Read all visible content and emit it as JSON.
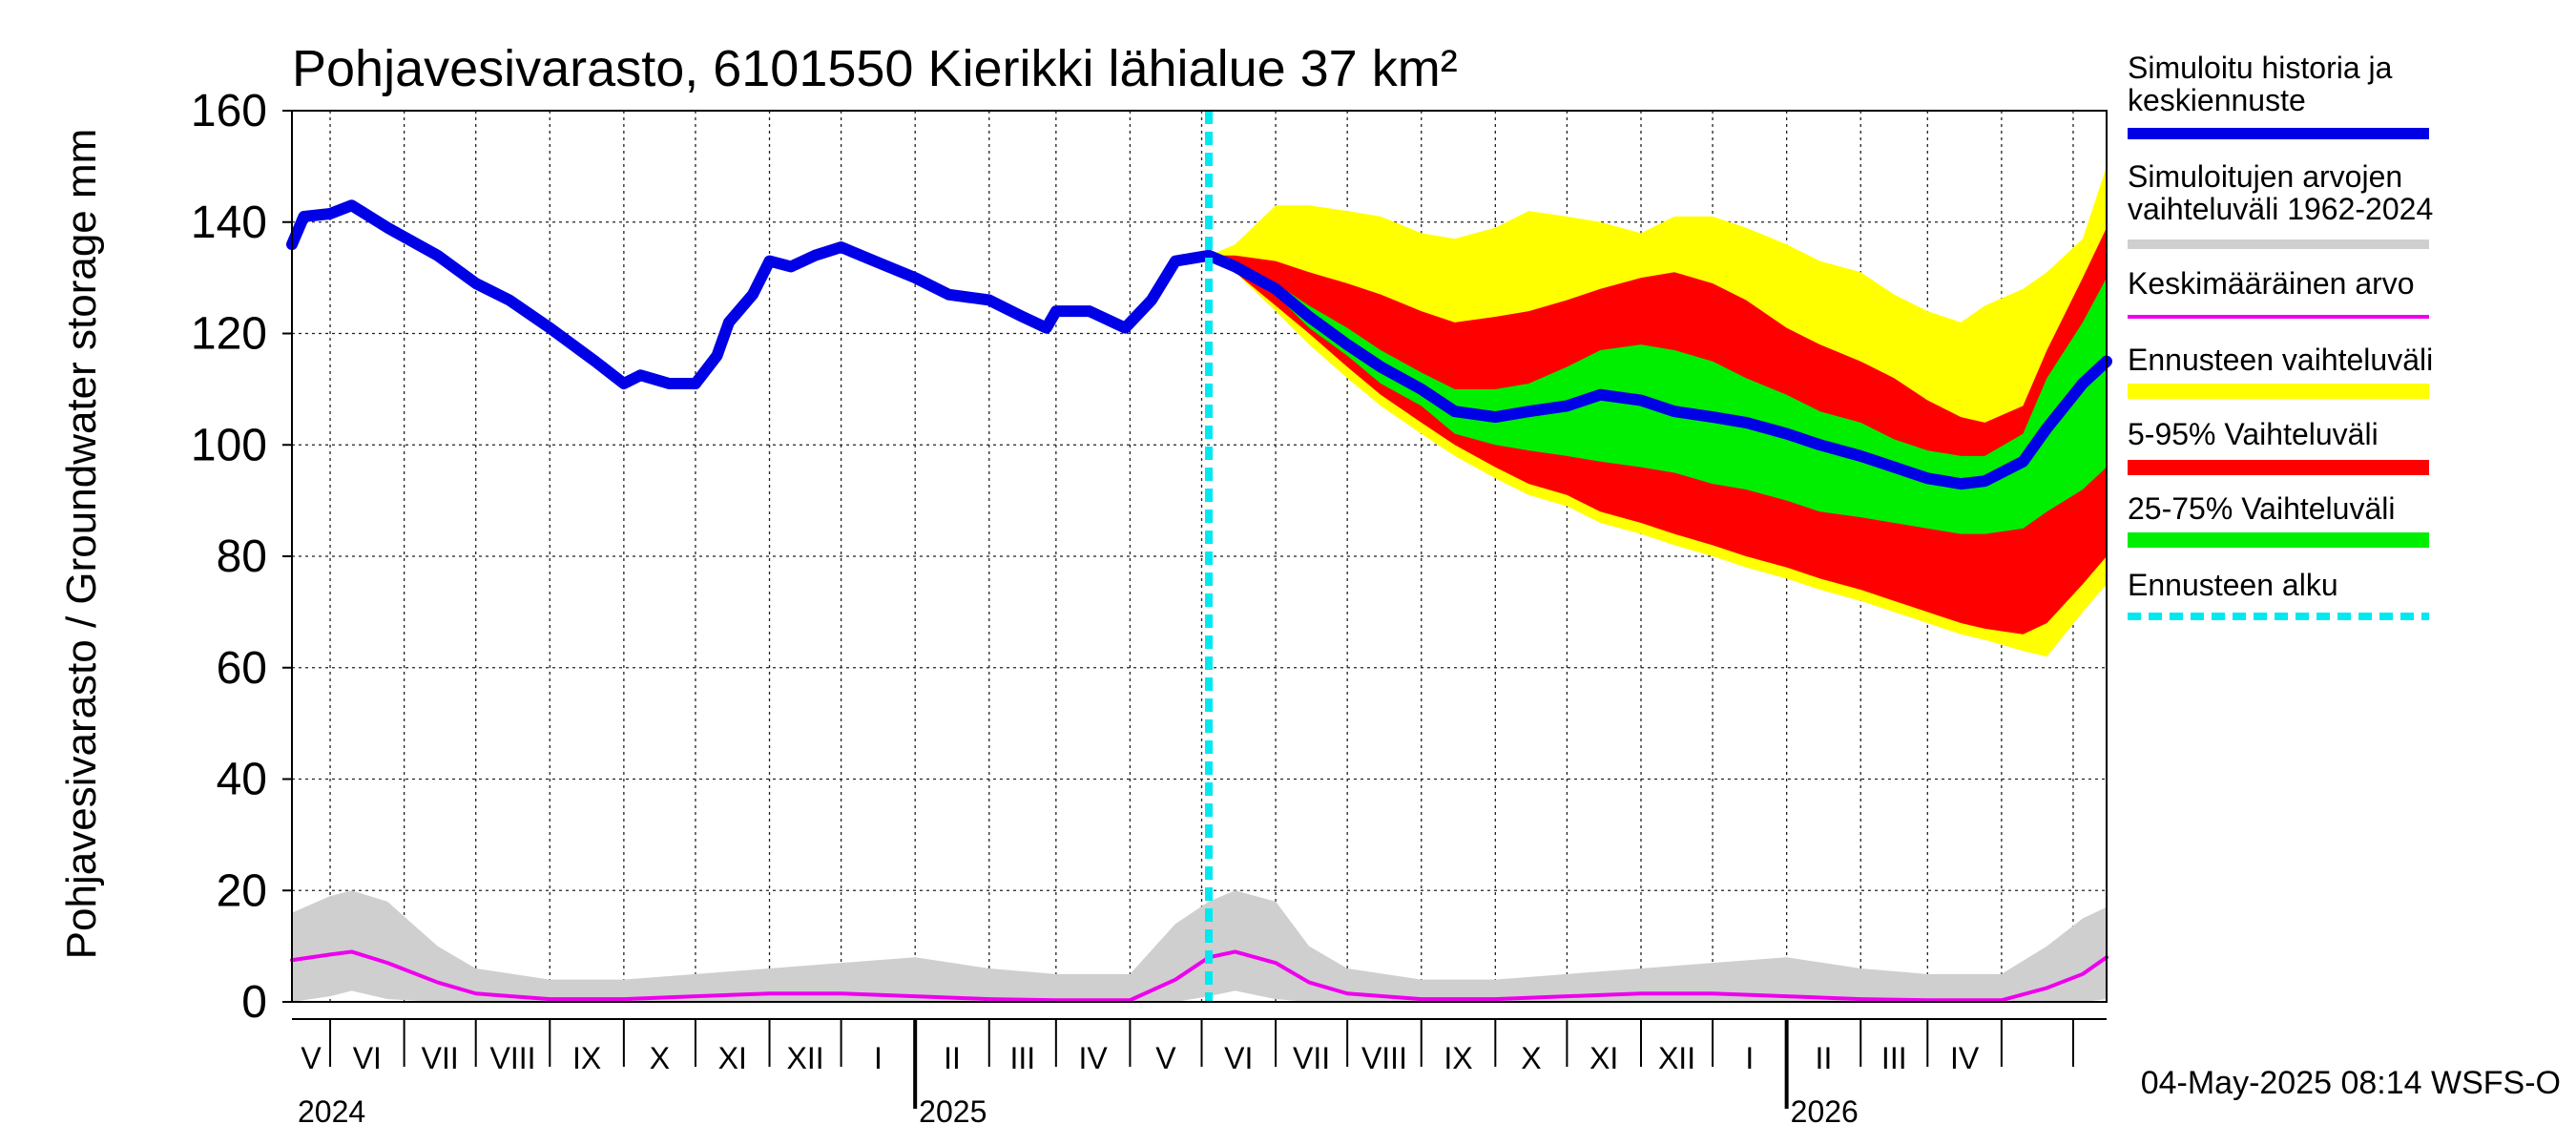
{
  "chart_data": {
    "type": "area",
    "title": "Pohjavesivarasto, 6101550 Kierikki lähialue 37 km²",
    "ylabel": "Pohjavesivarasto / Groundwater storage   mm",
    "ylim": [
      0,
      160
    ],
    "yticks": [
      "0",
      "20",
      "40",
      "60",
      "80",
      "100",
      "120",
      "140",
      "160"
    ],
    "grid": true,
    "legend_position": "right",
    "x_range": [
      "2024-04-15",
      "2026-05-15"
    ],
    "month_labels": [
      "V",
      "VI",
      "VII",
      "VIII",
      "IX",
      "X",
      "XI",
      "XII",
      "I",
      "II",
      "III",
      "IV",
      "V",
      "VI",
      "VII",
      "VIII",
      "IX",
      "X",
      "XI",
      "XII",
      "I",
      "II",
      "III",
      "IV"
    ],
    "year_labels": [
      "2024",
      "2025",
      "2026"
    ],
    "forecast_start": "2025-05-04",
    "footer": "04-May-2025 08:14 WSFS-O",
    "legend": [
      {
        "key": "history",
        "label": "Simuloitu historia ja keskiennuste",
        "color": "#0000e6"
      },
      {
        "key": "hist_range",
        "label": "Simuloitujen arvojen vaihteluväli 1962-2024",
        "color": "#cfcfcf"
      },
      {
        "key": "mean",
        "label": "Keskimääräinen arvo",
        "color": "#ee00ee"
      },
      {
        "key": "fc_range",
        "label": "Ennusteen vaihteluväli",
        "color": "#ffff00"
      },
      {
        "key": "p5_95",
        "label": "5-95% Vaihteluväli",
        "color": "#ff0000"
      },
      {
        "key": "p25_75",
        "label": "25-75% Vaihteluväli",
        "color": "#00ee00"
      },
      {
        "key": "fc_start",
        "label": "Ennusteen alku",
        "color": "#00e8f0"
      }
    ],
    "series": [
      {
        "name": "Simuloitu historia ja keskiennuste",
        "points": [
          [
            "2024-04-15",
            136
          ],
          [
            "2024-04-20",
            141
          ],
          [
            "2024-05-01",
            141.5
          ],
          [
            "2024-05-10",
            143
          ],
          [
            "2024-05-25",
            139
          ],
          [
            "2024-06-15",
            134
          ],
          [
            "2024-07-01",
            129
          ],
          [
            "2024-07-15",
            126
          ],
          [
            "2024-08-01",
            121
          ],
          [
            "2024-08-20",
            115
          ],
          [
            "2024-09-01",
            111
          ],
          [
            "2024-09-08",
            112.5
          ],
          [
            "2024-09-20",
            111
          ],
          [
            "2024-10-01",
            111
          ],
          [
            "2024-10-10",
            116
          ],
          [
            "2024-10-15",
            122
          ],
          [
            "2024-10-25",
            127
          ],
          [
            "2024-11-01",
            133
          ],
          [
            "2024-11-10",
            132
          ],
          [
            "2024-11-20",
            134
          ],
          [
            "2024-12-01",
            135.5
          ],
          [
            "2024-12-15",
            133
          ],
          [
            "2025-01-01",
            130
          ],
          [
            "2025-01-15",
            127
          ],
          [
            "2025-02-01",
            126
          ],
          [
            "2025-02-15",
            123
          ],
          [
            "2025-02-25",
            121
          ],
          [
            "2025-03-01",
            124
          ],
          [
            "2025-03-15",
            124
          ],
          [
            "2025-03-30",
            121
          ],
          [
            "2025-04-10",
            126
          ],
          [
            "2025-04-20",
            133
          ],
          [
            "2025-05-04",
            134
          ],
          [
            "2025-05-15",
            132
          ],
          [
            "2025-06-01",
            128
          ],
          [
            "2025-06-15",
            123
          ],
          [
            "2025-07-01",
            118
          ],
          [
            "2025-07-15",
            114
          ],
          [
            "2025-08-01",
            110
          ],
          [
            "2025-08-15",
            106
          ],
          [
            "2025-09-01",
            105
          ],
          [
            "2025-09-15",
            106
          ],
          [
            "2025-10-01",
            107
          ],
          [
            "2025-10-15",
            109
          ],
          [
            "2025-11-01",
            108
          ],
          [
            "2025-11-15",
            106
          ],
          [
            "2025-12-01",
            105
          ],
          [
            "2025-12-15",
            104
          ],
          [
            "2026-01-01",
            102
          ],
          [
            "2026-01-15",
            100
          ],
          [
            "2026-02-01",
            98
          ],
          [
            "2026-02-15",
            96
          ],
          [
            "2026-03-01",
            94
          ],
          [
            "2026-03-15",
            93
          ],
          [
            "2026-03-25",
            93.5
          ],
          [
            "2026-04-10",
            97
          ],
          [
            "2026-04-20",
            103
          ],
          [
            "2026-05-05",
            111
          ],
          [
            "2026-05-15",
            115
          ]
        ]
      },
      {
        "name": "Ennusteen vaihteluväli",
        "points": [
          [
            "2025-05-04",
            134,
            134
          ],
          [
            "2025-05-15",
            136,
            131
          ],
          [
            "2025-06-01",
            143,
            124
          ],
          [
            "2025-06-15",
            143,
            118
          ],
          [
            "2025-07-01",
            142,
            112
          ],
          [
            "2025-07-15",
            141,
            107
          ],
          [
            "2025-08-01",
            138,
            102
          ],
          [
            "2025-08-15",
            137,
            98
          ],
          [
            "2025-09-01",
            139,
            94
          ],
          [
            "2025-09-15",
            142,
            91
          ],
          [
            "2025-10-01",
            141,
            89
          ],
          [
            "2025-10-15",
            140,
            86
          ],
          [
            "2025-11-01",
            138,
            84
          ],
          [
            "2025-11-15",
            141,
            82
          ],
          [
            "2025-12-01",
            141,
            80
          ],
          [
            "2025-12-15",
            139,
            78
          ],
          [
            "2026-01-01",
            136,
            76
          ],
          [
            "2026-01-15",
            133,
            74
          ],
          [
            "2026-02-01",
            131,
            72
          ],
          [
            "2026-02-15",
            127,
            70
          ],
          [
            "2026-03-01",
            124,
            68
          ],
          [
            "2026-03-15",
            122,
            66
          ],
          [
            "2026-03-25",
            125,
            65
          ],
          [
            "2026-04-10",
            128,
            63
          ],
          [
            "2026-04-20",
            131,
            62
          ],
          [
            "2026-05-05",
            137,
            70
          ],
          [
            "2026-05-15",
            150,
            75
          ]
        ]
      },
      {
        "name": "5-95% Vaihteluväli",
        "points": [
          [
            "2025-05-04",
            134,
            134
          ],
          [
            "2025-05-15",
            134,
            131
          ],
          [
            "2025-06-01",
            133,
            125
          ],
          [
            "2025-06-15",
            131,
            120
          ],
          [
            "2025-07-01",
            129,
            114
          ],
          [
            "2025-07-15",
            127,
            109
          ],
          [
            "2025-08-01",
            124,
            104
          ],
          [
            "2025-08-15",
            122,
            100
          ],
          [
            "2025-09-01",
            123,
            96
          ],
          [
            "2025-09-15",
            124,
            93
          ],
          [
            "2025-10-01",
            126,
            91
          ],
          [
            "2025-10-15",
            128,
            88
          ],
          [
            "2025-11-01",
            130,
            86
          ],
          [
            "2025-11-15",
            131,
            84
          ],
          [
            "2025-12-01",
            129,
            82
          ],
          [
            "2025-12-15",
            126,
            80
          ],
          [
            "2026-01-01",
            121,
            78
          ],
          [
            "2026-01-15",
            118,
            76
          ],
          [
            "2026-02-01",
            115,
            74
          ],
          [
            "2026-02-15",
            112,
            72
          ],
          [
            "2026-03-01",
            108,
            70
          ],
          [
            "2026-03-15",
            105,
            68
          ],
          [
            "2026-03-25",
            104,
            67
          ],
          [
            "2026-04-10",
            107,
            66
          ],
          [
            "2026-04-20",
            117,
            68
          ],
          [
            "2026-05-05",
            130,
            75
          ],
          [
            "2026-05-15",
            139,
            80
          ]
        ]
      },
      {
        "name": "25-75% Vaihteluväli",
        "points": [
          [
            "2025-05-04",
            134,
            134
          ],
          [
            "2025-05-15",
            133,
            132
          ],
          [
            "2025-06-01",
            129,
            127
          ],
          [
            "2025-06-15",
            125,
            121
          ],
          [
            "2025-07-01",
            121,
            116
          ],
          [
            "2025-07-15",
            117,
            111
          ],
          [
            "2025-08-01",
            113,
            107
          ],
          [
            "2025-08-15",
            110,
            102
          ],
          [
            "2025-09-01",
            110,
            100
          ],
          [
            "2025-09-15",
            111,
            99
          ],
          [
            "2025-10-01",
            114,
            98
          ],
          [
            "2025-10-15",
            117,
            97
          ],
          [
            "2025-11-01",
            118,
            96
          ],
          [
            "2025-11-15",
            117,
            95
          ],
          [
            "2025-12-01",
            115,
            93
          ],
          [
            "2025-12-15",
            112,
            92
          ],
          [
            "2026-01-01",
            109,
            90
          ],
          [
            "2026-01-15",
            106,
            88
          ],
          [
            "2026-02-01",
            104,
            87
          ],
          [
            "2026-02-15",
            101,
            86
          ],
          [
            "2026-03-01",
            99,
            85
          ],
          [
            "2026-03-15",
            98,
            84
          ],
          [
            "2026-03-25",
            98,
            84
          ],
          [
            "2026-04-10",
            102,
            85
          ],
          [
            "2026-04-20",
            112,
            88
          ],
          [
            "2026-05-05",
            122,
            92
          ],
          [
            "2026-05-15",
            130,
            96
          ]
        ]
      },
      {
        "name": "Simuloitujen arvojen vaihteluväli 1962-2024",
        "points": [
          [
            "2024-04-15",
            16,
            0
          ],
          [
            "2024-05-01",
            19,
            1
          ],
          [
            "2024-05-10",
            20,
            2
          ],
          [
            "2024-05-25",
            18,
            0.5
          ],
          [
            "2024-06-15",
            10,
            0
          ],
          [
            "2024-07-01",
            6,
            0
          ],
          [
            "2024-08-01",
            4,
            0
          ],
          [
            "2024-09-01",
            4,
            0
          ],
          [
            "2024-10-01",
            5,
            0
          ],
          [
            "2024-11-01",
            6,
            0
          ],
          [
            "2024-12-01",
            7,
            0
          ],
          [
            "2025-01-01",
            8,
            0
          ],
          [
            "2025-02-01",
            6,
            0
          ],
          [
            "2025-03-01",
            5,
            0
          ],
          [
            "2025-04-01",
            5,
            0
          ],
          [
            "2025-04-20",
            14,
            0
          ],
          [
            "2025-05-04",
            18,
            1
          ],
          [
            "2025-05-15",
            20,
            2
          ],
          [
            "2025-06-01",
            18,
            0.5
          ],
          [
            "2025-06-15",
            10,
            0
          ],
          [
            "2025-07-01",
            6,
            0
          ],
          [
            "2025-08-01",
            4,
            0
          ],
          [
            "2025-09-01",
            4,
            0
          ],
          [
            "2025-10-01",
            5,
            0
          ],
          [
            "2025-11-01",
            6,
            0
          ],
          [
            "2025-12-01",
            7,
            0
          ],
          [
            "2026-01-01",
            8,
            0
          ],
          [
            "2026-02-01",
            6,
            0
          ],
          [
            "2026-03-01",
            5,
            0
          ],
          [
            "2026-04-01",
            5,
            0
          ],
          [
            "2026-04-20",
            10,
            0
          ],
          [
            "2026-05-05",
            15,
            0
          ],
          [
            "2026-05-15",
            17,
            0.5
          ]
        ]
      },
      {
        "name": "Keskimääräinen arvo",
        "points": [
          [
            "2024-04-15",
            7.5
          ],
          [
            "2024-05-01",
            8.5
          ],
          [
            "2024-05-10",
            9
          ],
          [
            "2024-05-25",
            7
          ],
          [
            "2024-06-15",
            3.5
          ],
          [
            "2024-07-01",
            1.5
          ],
          [
            "2024-08-01",
            0.5
          ],
          [
            "2024-09-01",
            0.5
          ],
          [
            "2024-10-01",
            1
          ],
          [
            "2024-11-01",
            1.5
          ],
          [
            "2024-12-01",
            1.5
          ],
          [
            "2025-01-01",
            1
          ],
          [
            "2025-02-01",
            0.5
          ],
          [
            "2025-03-01",
            0.3
          ],
          [
            "2025-04-01",
            0.3
          ],
          [
            "2025-04-20",
            4
          ],
          [
            "2025-05-04",
            8
          ],
          [
            "2025-05-15",
            9
          ],
          [
            "2025-06-01",
            7
          ],
          [
            "2025-06-15",
            3.5
          ],
          [
            "2025-07-01",
            1.5
          ],
          [
            "2025-08-01",
            0.5
          ],
          [
            "2025-09-01",
            0.5
          ],
          [
            "2025-10-01",
            1
          ],
          [
            "2025-11-01",
            1.5
          ],
          [
            "2025-12-01",
            1.5
          ],
          [
            "2026-01-01",
            1
          ],
          [
            "2026-02-01",
            0.5
          ],
          [
            "2026-03-01",
            0.3
          ],
          [
            "2026-04-01",
            0.3
          ],
          [
            "2026-04-20",
            2.5
          ],
          [
            "2026-05-05",
            5
          ],
          [
            "2026-05-15",
            8
          ]
        ]
      }
    ]
  }
}
